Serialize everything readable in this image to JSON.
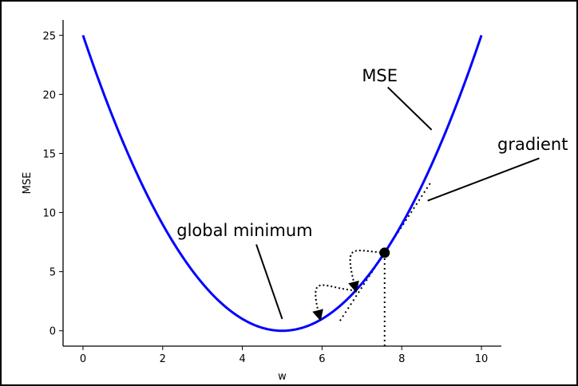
{
  "chart_data": {
    "type": "line",
    "xlabel": "w",
    "ylabel": "MSE",
    "xlim": [
      -0.5,
      10.5
    ],
    "ylim": [
      -1.3,
      26.3
    ],
    "xticks": [
      0,
      2,
      4,
      6,
      8,
      10
    ],
    "yticks": [
      0,
      5,
      10,
      15,
      20,
      25
    ],
    "grid": false,
    "legend": "none",
    "series": [
      {
        "function": "(w-5)^2",
        "x_range": [
          0,
          10
        ],
        "color": "#0000ff"
      }
    ],
    "point": {
      "x": 7.57,
      "y": 6.6,
      "color": "#000000"
    },
    "tangent_line": {
      "x_range": [
        6.45,
        8.75
      ],
      "slope": 5.14,
      "style": "dotted"
    },
    "drop_line": {
      "x": 7.57,
      "y_range": [
        -1.3,
        6.6
      ],
      "style": "dotted"
    },
    "descent_arrows": [
      {
        "from": [
          7.57,
          6.6
        ],
        "to": [
          6.85,
          3.4
        ]
      },
      {
        "from": [
          6.85,
          3.4
        ],
        "to": [
          5.95,
          1.0
        ]
      }
    ],
    "annotations": [
      {
        "text": "MSE",
        "text_xy": [
          7.0,
          21.1
        ],
        "arrow_from": [
          7.65,
          20.6
        ],
        "arrow_to": [
          8.75,
          17.0
        ]
      },
      {
        "text": "gradient",
        "text_xy": [
          10.4,
          15.3
        ],
        "arrow_from": [
          11.45,
          14.6
        ],
        "arrow_to": [
          8.65,
          11.0
        ]
      },
      {
        "text": "global minimum",
        "text_xy": [
          2.35,
          8.0
        ],
        "arrow_from": [
          4.35,
          7.3
        ],
        "arrow_to": [
          5.0,
          1.0
        ]
      }
    ]
  }
}
